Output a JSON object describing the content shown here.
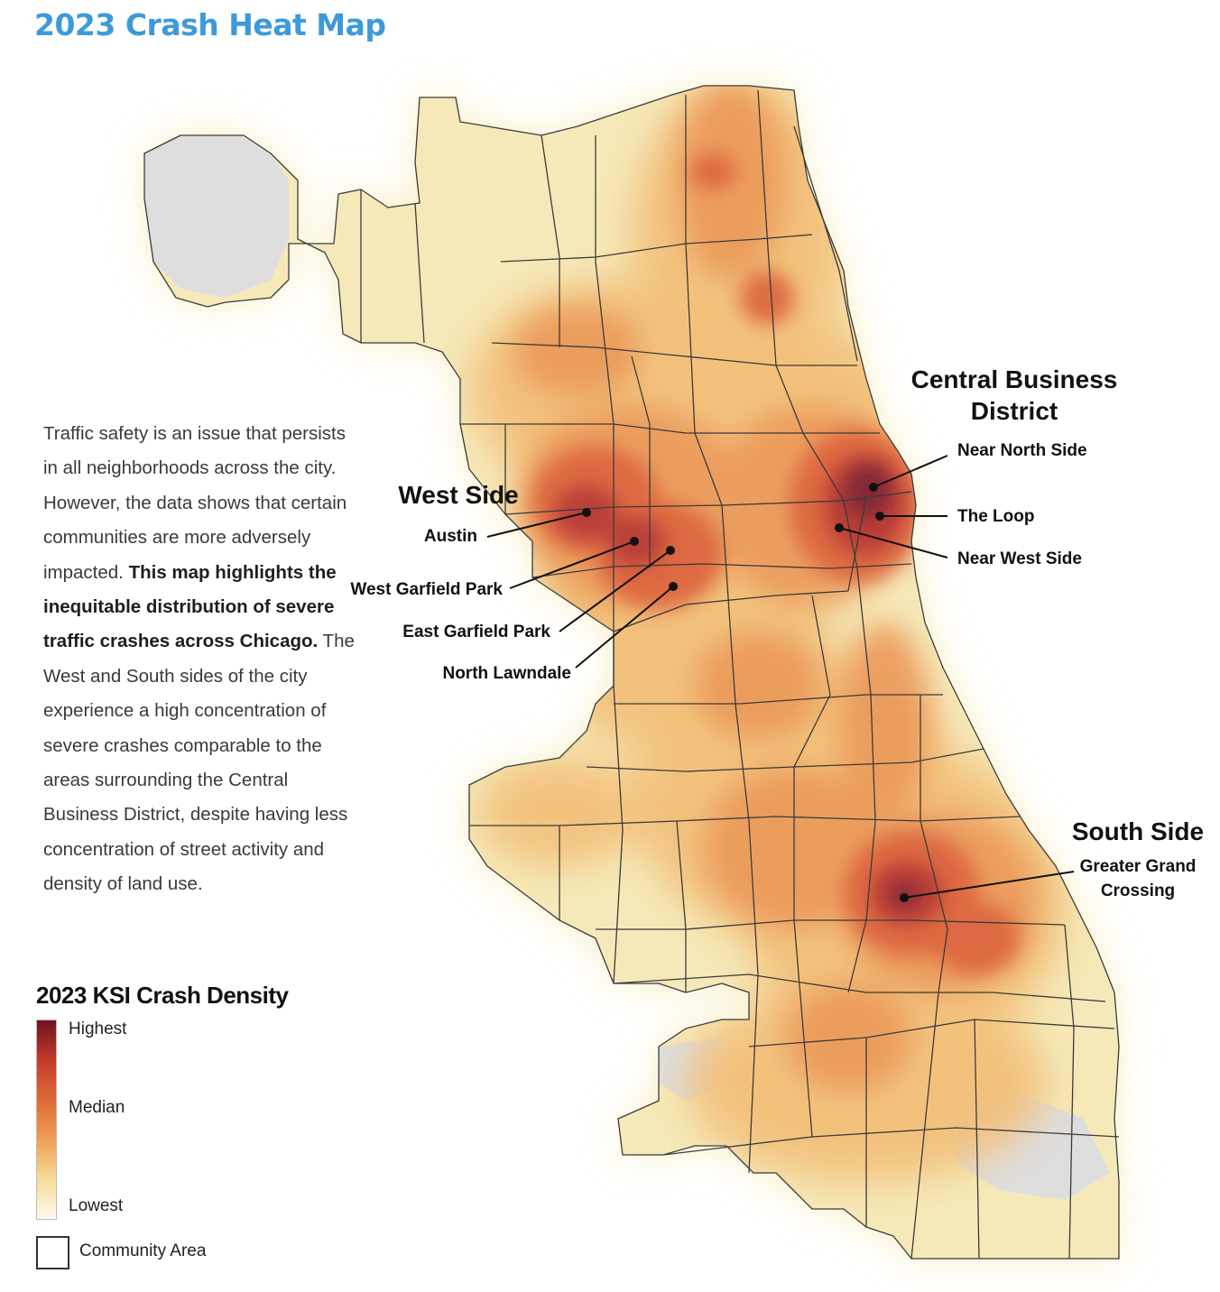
{
  "title": "2023 Crash Heat Map",
  "colors": {
    "title": "#3d9ad9",
    "highest": "#6e1420",
    "median": "#df6a38",
    "lowest": "#fffbec",
    "boundary": "#3b3b3b",
    "nodata": "#dedede"
  },
  "intro": {
    "text_1": "Traffic safety is an issue that persists in all neighborhoods across the city. However, the data shows that certain communities are more adversely impacted. ",
    "bold": "This map highlights the inequitable distribution of severe traffic crashes across Chicago.",
    "text_2": " The West and South sides of the city experience a high concentration of severe crashes comparable to the areas surrounding the Central Business District, despite having less concentration of street activity and density of land use."
  },
  "regions": {
    "cbd_line1": "Central Business",
    "cbd_line2": "District",
    "west": "West Side",
    "south": "South Side"
  },
  "neighborhoods": {
    "near_north": "Near North Side",
    "loop": "The Loop",
    "near_west": "Near West Side",
    "austin": "Austin",
    "west_garfield": "West Garfield Park",
    "east_garfield": "East Garfield Park",
    "north_lawndale": "North Lawndale",
    "ggc_line1": "Greater Grand",
    "ggc_line2": "Crossing"
  },
  "legend": {
    "title": "2023 KSI Crash Density",
    "highest": "Highest",
    "median": "Median",
    "lowest": "Lowest",
    "community_area": "Community Area"
  }
}
